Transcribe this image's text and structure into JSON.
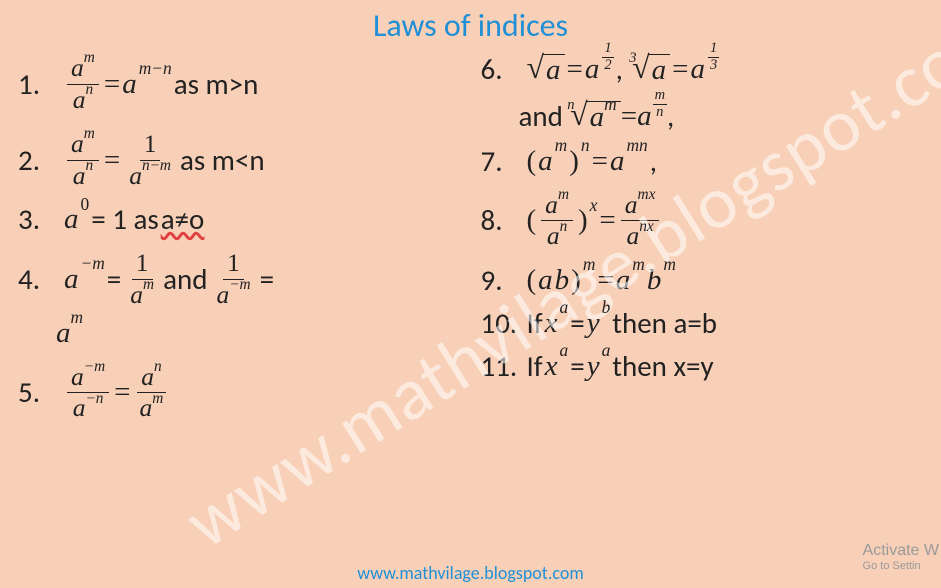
{
  "title": "Laws of indices",
  "footer_url": "www.mathvilage.blogspot.com",
  "watermark": "www.mathvilage.blogspot.com",
  "activate_line1": "Activate W",
  "activate_line2": "Go to Settin",
  "colors": {
    "background": "#f8d0b8",
    "title": "#1f8fd6",
    "text": "#222222",
    "underline_wavy": "#e04040",
    "watermark": "rgba(255,255,255,0.55)",
    "activate_gray": "#9a9a9a"
  },
  "left": {
    "r1": {
      "num": "1.",
      "cond": " as m>n"
    },
    "r2": {
      "num": "2.",
      "cond": " as m<n"
    },
    "r3": {
      "num": "3.",
      "text_pre": " = 1 as ",
      "neq": "a≠o"
    },
    "r4": {
      "num": "4.",
      "and": " and "
    },
    "r5": {
      "num": "5."
    }
  },
  "right": {
    "r6": {
      "num": "6.",
      "comma": ", "
    },
    "r6b": {
      "and": "and ",
      "comma": ","
    },
    "r7": {
      "num": "7.",
      "comma": ","
    },
    "r8": {
      "num": "8."
    },
    "r9": {
      "num": "9."
    },
    "r10": {
      "num": "10.",
      "pre": "If ",
      "mid": "= ",
      "post": " then a=b"
    },
    "r11": {
      "num": "11.",
      "pre": "If  ",
      "mid": "= ",
      "post": " then x=y"
    }
  },
  "sym": {
    "a": "a",
    "m": "m",
    "n": "n",
    "x": "x",
    "y": "y",
    "b": "b",
    "zero": "0",
    "one": "1",
    "eq": " = ",
    "mn": "m−n",
    "nm": "n−m",
    "negm": "−m",
    "negn": "−n",
    "mn2": "mn",
    "mx": "mx",
    "nx": "nx",
    "half_t": "1",
    "half_b": "2",
    "third_t": "1",
    "third_b": "3"
  }
}
